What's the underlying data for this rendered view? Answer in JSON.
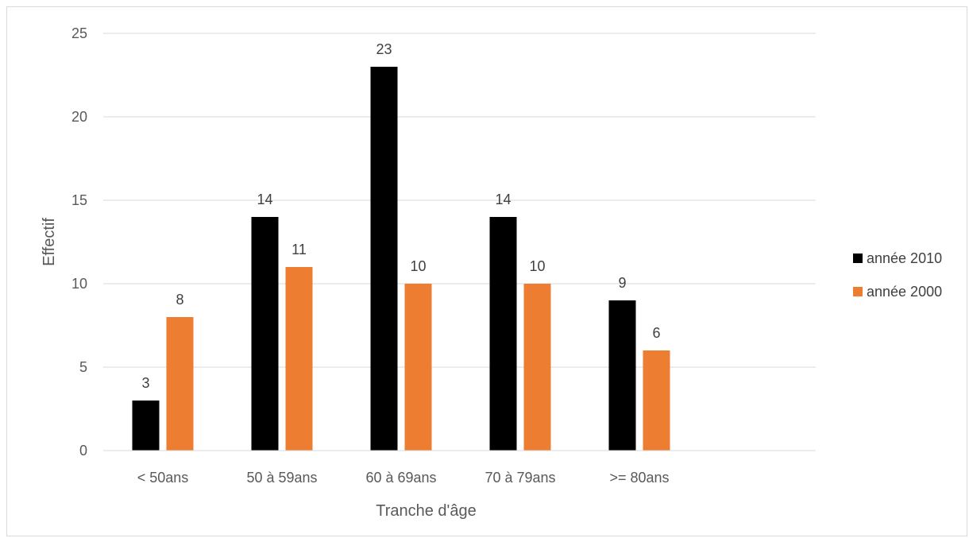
{
  "chart_data": {
    "type": "bar",
    "title": "",
    "xlabel": "Tranche d'âge",
    "ylabel": "Effectif",
    "categories": [
      "< 50ans",
      "50 à 59ans",
      "60 à 69ans",
      "70 à 79ans",
      ">= 80ans"
    ],
    "series": [
      {
        "name": "année 2010",
        "color": "#000000",
        "values": [
          3,
          14,
          23,
          14,
          9
        ]
      },
      {
        "name": "année 2000",
        "color": "#ed7d31",
        "values": [
          8,
          11,
          10,
          10,
          6
        ]
      }
    ],
    "ylim": [
      0,
      25
    ],
    "yticks": [
      0,
      5,
      10,
      15,
      20,
      25
    ],
    "grid": true,
    "legend_position": "right",
    "data_labels": true
  }
}
